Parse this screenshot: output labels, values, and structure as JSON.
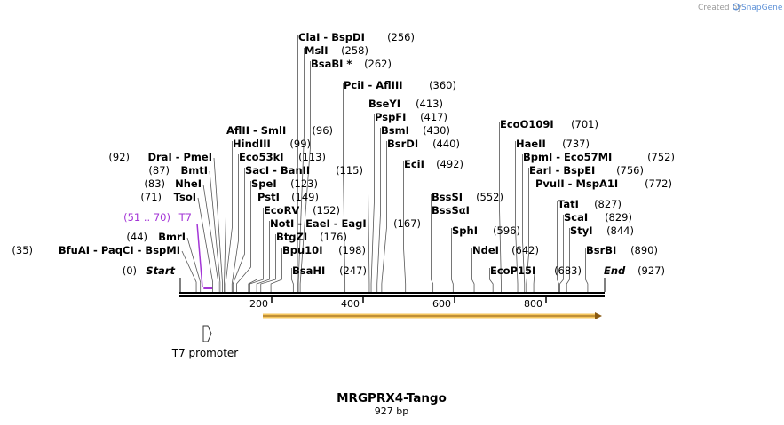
{
  "header": {
    "credit_text": "Created by",
    "credit_brand": "SnapGene",
    "brand_color": "#5b8fd6"
  },
  "plasmid": {
    "name": "MRGPRX4-Tango",
    "length_label": "927 bp",
    "length": 927
  },
  "ruler": {
    "ticks": [
      "200",
      "400",
      "600",
      "800"
    ]
  },
  "features": [
    {
      "name": "T7 promoter",
      "label": "T7 promoter",
      "start": 51,
      "end": 70,
      "color": "#ffffff"
    },
    {
      "name": "ORF",
      "label": "",
      "start": 200,
      "end": 927,
      "color": "#f5c65e"
    }
  ],
  "sites": [
    {
      "name": "Start",
      "pos": "(0)",
      "bp": 0,
      "kind": "end"
    },
    {
      "name": "End",
      "pos": "(927)",
      "bp": 927,
      "kind": "end"
    },
    {
      "name": "BfuAI  - PaqCI  - BspMI",
      "pos": "(35)",
      "bp": 35
    },
    {
      "name": "BmrI",
      "pos": "(44)",
      "bp": 44
    },
    {
      "name": "T7",
      "pos": "(51 .. 70)",
      "bp": 60,
      "kind": "primer",
      "color": "#a335d6"
    },
    {
      "name": "TsoI",
      "pos": "(71)",
      "bp": 71
    },
    {
      "name": "NheI",
      "pos": "(83)",
      "bp": 83
    },
    {
      "name": "BmtI",
      "pos": "(87)",
      "bp": 87
    },
    {
      "name": "DraI  - PmeI",
      "pos": "(92)",
      "bp": 92
    },
    {
      "name": "AflII  - SmlI",
      "pos": "(96)",
      "bp": 96
    },
    {
      "name": "HindIII",
      "pos": "(99)",
      "bp": 99
    },
    {
      "name": "Eco53kI",
      "pos": "(113)",
      "bp": 113
    },
    {
      "name": "SacI  - BanII",
      "pos": "(115)",
      "bp": 115
    },
    {
      "name": "SpeI",
      "pos": "(123)",
      "bp": 123
    },
    {
      "name": "PstI",
      "pos": "(149)",
      "bp": 149
    },
    {
      "name": "EcoRV",
      "pos": "(152)",
      "bp": 152
    },
    {
      "name": "NotI  - EaeI  - EagI",
      "pos": "(167)",
      "bp": 167
    },
    {
      "name": "BtgZI",
      "pos": "(176)",
      "bp": 176
    },
    {
      "name": "Bpu10I",
      "pos": "(198)",
      "bp": 198
    },
    {
      "name": "BsaHI",
      "pos": "(247)",
      "bp": 247
    },
    {
      "name": "ClaI  - BspDI",
      "pos": "(256)",
      "bp": 256
    },
    {
      "name": "MslI",
      "pos": "(258)",
      "bp": 258
    },
    {
      "name": "BsaBI *",
      "pos": "(262)",
      "bp": 262
    },
    {
      "name": "PciI  - AflIII",
      "pos": "(360)",
      "bp": 360
    },
    {
      "name": "BseYI",
      "pos": "(413)",
      "bp": 413
    },
    {
      "name": "PspFI",
      "pos": "(417)",
      "bp": 417
    },
    {
      "name": "BsmI",
      "pos": "(430)",
      "bp": 430
    },
    {
      "name": "BsrDI",
      "pos": "(440)",
      "bp": 440
    },
    {
      "name": "EciI",
      "pos": "(492)",
      "bp": 492
    },
    {
      "name": "BssSI",
      "pos": "(552)",
      "bp": 552
    },
    {
      "name": "BssSαI",
      "pos": "",
      "bp": 552
    },
    {
      "name": "SphI",
      "pos": "(596)",
      "bp": 596
    },
    {
      "name": "NdeI",
      "pos": "(642)",
      "bp": 642
    },
    {
      "name": "EcoP15I",
      "pos": "(683)",
      "bp": 683
    },
    {
      "name": "EcoO109I",
      "pos": "(701)",
      "bp": 701
    },
    {
      "name": "HaeII",
      "pos": "(737)",
      "bp": 737
    },
    {
      "name": "BpmI  - Eco57MI",
      "pos": "(752)",
      "bp": 752
    },
    {
      "name": "EarI  - BspEI",
      "pos": "(756)",
      "bp": 756
    },
    {
      "name": "PvuII  - MspA1I",
      "pos": "(772)",
      "bp": 772
    },
    {
      "name": "TatI",
      "pos": "(827)",
      "bp": 827
    },
    {
      "name": "ScaI",
      "pos": "(829)",
      "bp": 829
    },
    {
      "name": "StyI",
      "pos": "(844)",
      "bp": 844
    },
    {
      "name": "BsrBI",
      "pos": "(890)",
      "bp": 890
    }
  ]
}
